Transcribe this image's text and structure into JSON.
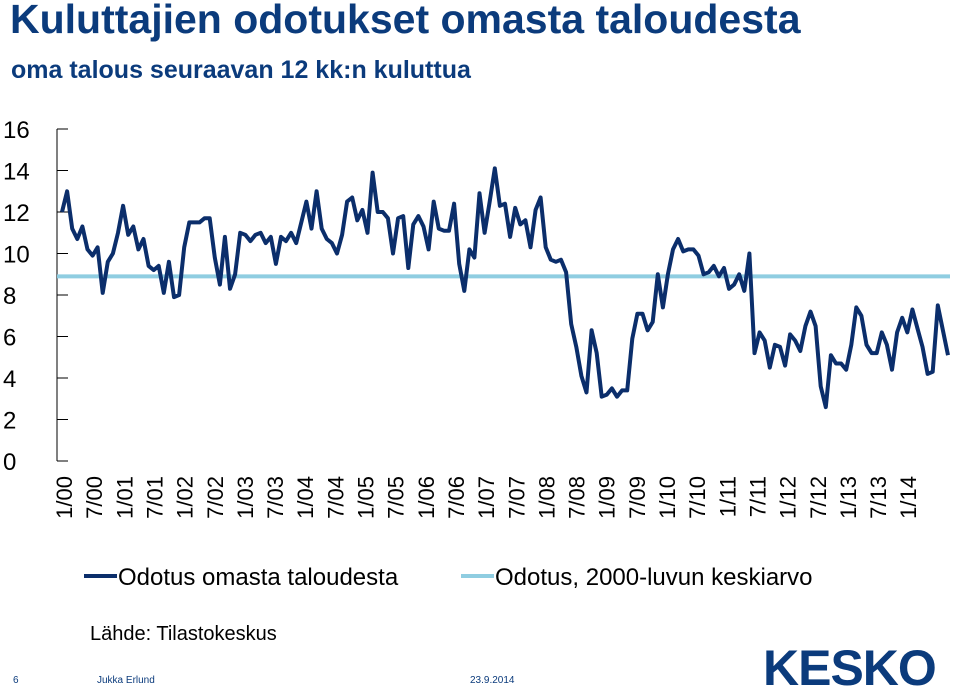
{
  "title": "Kuluttajien odotukset omasta taloudesta",
  "subtitle": "oma talous seuraavan 12 kk:n kuluttua",
  "source": "Lähde: Tilastokeskus",
  "footer": {
    "page": "6",
    "author": "Jukka Erlund",
    "date": "23.9.2014"
  },
  "logo": "KESKO",
  "colors": {
    "series": "#0b2e6b",
    "average": "#8fcde1",
    "title": "#0b3b7c"
  },
  "chart_data": {
    "type": "line",
    "ylim": [
      0,
      16
    ],
    "yticks": [
      "16",
      "14",
      "12",
      "10",
      "8",
      "6",
      "4",
      "2",
      "0"
    ],
    "xticks": [
      "1/00",
      "7/00",
      "1/01",
      "7/01",
      "1/02",
      "7/02",
      "1/03",
      "7/03",
      "1/04",
      "7/04",
      "1/05",
      "7/05",
      "1/06",
      "7/06",
      "1/07",
      "7/07",
      "1/08",
      "7/08",
      "1/09",
      "7/09",
      "1/10",
      "7/10",
      "1/11",
      "7/11",
      "1/12",
      "7/12",
      "1/13",
      "7/13",
      "1/14"
    ],
    "legend_position": "bottom",
    "series": [
      {
        "name": "Odotus omasta taloudesta",
        "values": [
          12.0,
          13.0,
          11.2,
          10.7,
          11.3,
          10.2,
          9.9,
          10.3,
          8.1,
          9.6,
          10.0,
          11.0,
          12.3,
          10.9,
          11.3,
          10.2,
          10.7,
          9.4,
          9.2,
          9.4,
          8.1,
          9.6,
          7.9,
          8.0,
          10.3,
          11.5,
          11.5,
          11.5,
          11.7,
          11.7,
          9.8,
          8.5,
          10.8,
          8.3,
          9.0,
          11.0,
          10.9,
          10.6,
          10.9,
          11.0,
          10.5,
          10.8,
          9.5,
          10.8,
          10.6,
          11.0,
          10.5,
          11.5,
          12.5,
          11.2,
          13.0,
          11.2,
          10.7,
          10.5,
          10.0,
          10.9,
          12.5,
          12.7,
          11.6,
          12.1,
          11.0,
          13.9,
          12.0,
          12.0,
          11.7,
          10.0,
          11.7,
          11.8,
          9.3,
          11.4,
          11.8,
          11.3,
          10.2,
          12.5,
          11.2,
          11.1,
          11.1,
          12.4,
          9.5,
          8.2,
          10.2,
          9.8,
          12.9,
          11.0,
          12.5,
          14.1,
          12.3,
          12.4,
          10.8,
          12.2,
          11.4,
          11.6,
          10.3,
          12.1,
          12.7,
          10.3,
          9.7,
          9.6,
          9.7,
          9.1,
          6.6,
          5.5,
          4.1,
          3.3,
          6.3,
          5.2,
          3.1,
          3.2,
          3.5,
          3.1,
          3.4,
          3.4,
          5.9,
          7.1,
          7.1,
          6.3,
          6.7,
          9.0,
          7.4,
          9.0,
          10.2,
          10.7,
          10.1,
          10.2,
          10.2,
          9.9,
          9.0,
          9.1,
          9.4,
          8.9,
          9.3,
          8.3,
          8.5,
          9.0,
          8.2,
          10.0,
          5.2,
          6.2,
          5.8,
          4.5,
          5.6,
          5.5,
          4.6,
          6.1,
          5.8,
          5.3,
          6.5,
          7.2,
          6.5,
          3.6,
          2.6,
          5.1,
          4.7,
          4.7,
          4.4,
          5.6,
          7.4,
          7.0,
          5.6,
          5.2,
          5.2,
          6.2,
          5.6,
          4.4,
          6.2,
          6.9,
          6.2,
          7.3,
          6.4,
          5.5,
          4.2,
          4.3,
          7.5,
          6.3,
          5.1
        ]
      },
      {
        "name": "Odotus, 2000-luvun keskiarvo",
        "values": [
          8.9
        ]
      }
    ]
  }
}
